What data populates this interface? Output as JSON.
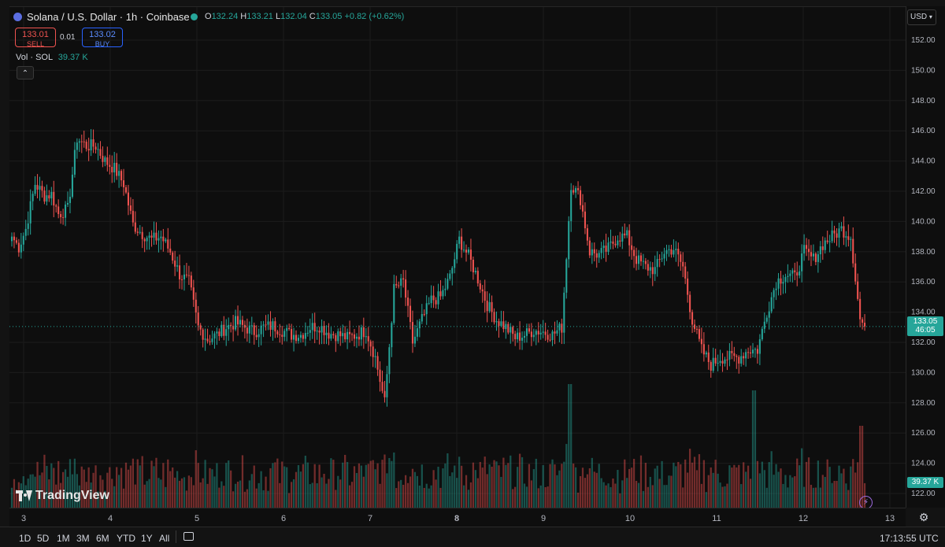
{
  "header": {
    "symbol_title": "Solana / U.S. Dollar · 1h · Coinbase",
    "ohlc": {
      "o_label": "O",
      "o_value": "132.24",
      "h_label": "H",
      "h_value": "133.21",
      "l_label": "L",
      "l_value": "132.04",
      "c_label": "C",
      "c_value": "133.05",
      "change": "+0.82 (+0.62%)"
    },
    "sell": {
      "price": "133.01",
      "label": "SELL"
    },
    "spread": "0.01",
    "buy": {
      "price": "133.02",
      "label": "BUY"
    },
    "volume_label": "Vol · SOL",
    "volume_value": "39.37 K",
    "collapse_icon": "chevron-up-icon"
  },
  "currency_select": "USD",
  "price_axis": {
    "ticks": [
      "152.00",
      "150.00",
      "148.00",
      "146.00",
      "144.00",
      "142.00",
      "140.00",
      "138.00",
      "136.00",
      "134.00",
      "132.00",
      "130.00",
      "128.00",
      "126.00",
      "124.00",
      "122.00"
    ],
    "last_price": "133.05",
    "countdown": "46:05",
    "volume_tag": "39.37 K"
  },
  "time_axis": {
    "labels": [
      "3",
      "4",
      "5",
      "6",
      "7",
      "8",
      "9",
      "10",
      "11",
      "12",
      "13"
    ]
  },
  "watermark": "TradingView",
  "bottom_bar": {
    "timeframes": [
      "1D",
      "5D",
      "1M",
      "3M",
      "6M",
      "YTD",
      "1Y",
      "All"
    ],
    "clock": "17:13:55 UTC"
  },
  "colors": {
    "up": "#26a69a",
    "down": "#ef5350",
    "background": "#0e0e0e",
    "last_price_tag": "#26a69a"
  },
  "chart_data": {
    "type": "candlestick",
    "ylim": [
      121,
      153
    ],
    "x_labels": [
      "3",
      "4",
      "5",
      "6",
      "7",
      "8",
      "9",
      "10",
      "11",
      "12",
      "13"
    ],
    "close_anchors": [
      [
        0,
        139.0
      ],
      [
        3,
        138.3
      ],
      [
        6,
        139.5
      ],
      [
        10,
        142.5
      ],
      [
        14,
        141.7
      ],
      [
        17,
        141.8
      ],
      [
        20,
        140.5
      ],
      [
        24,
        140.8
      ],
      [
        28,
        145.5
      ],
      [
        32,
        145.0
      ],
      [
        36,
        145.0
      ],
      [
        40,
        144.0
      ],
      [
        44,
        143.5
      ],
      [
        48,
        142.5
      ],
      [
        52,
        139.8
      ],
      [
        56,
        139.2
      ],
      [
        60,
        138.8
      ],
      [
        64,
        139.0
      ],
      [
        68,
        138.0
      ],
      [
        72,
        136.5
      ],
      [
        76,
        136.0
      ],
      [
        80,
        133.0
      ],
      [
        84,
        132.2
      ],
      [
        88,
        132.5
      ],
      [
        92,
        133.0
      ],
      [
        96,
        133.3
      ],
      [
        100,
        133.0
      ],
      [
        104,
        132.7
      ],
      [
        108,
        133.0
      ],
      [
        112,
        133.1
      ],
      [
        116,
        132.8
      ],
      [
        120,
        132.5
      ],
      [
        124,
        132.5
      ],
      [
        128,
        133.0
      ],
      [
        132,
        133.1
      ],
      [
        136,
        132.6
      ],
      [
        140,
        132.5
      ],
      [
        144,
        132.3
      ],
      [
        148,
        132.5
      ],
      [
        152,
        132.8
      ],
      [
        156,
        131.0
      ],
      [
        160,
        128.0
      ],
      [
        164,
        135.5
      ],
      [
        168,
        136.0
      ],
      [
        172,
        132.0
      ],
      [
        176,
        133.5
      ],
      [
        180,
        134.8
      ],
      [
        184,
        135.0
      ],
      [
        188,
        136.3
      ],
      [
        192,
        138.8
      ],
      [
        196,
        137.7
      ],
      [
        200,
        136.2
      ],
      [
        204,
        134.5
      ],
      [
        208,
        133.5
      ],
      [
        212,
        133.0
      ],
      [
        216,
        132.3
      ],
      [
        220,
        132.5
      ],
      [
        224,
        132.8
      ],
      [
        228,
        132.7
      ],
      [
        232,
        132.5
      ],
      [
        236,
        133.0
      ],
      [
        240,
        142.5
      ],
      [
        244,
        141.5
      ],
      [
        248,
        138.0
      ],
      [
        252,
        137.8
      ],
      [
        256,
        138.2
      ],
      [
        260,
        139.0
      ],
      [
        264,
        139.0
      ],
      [
        268,
        137.5
      ],
      [
        272,
        137.0
      ],
      [
        276,
        136.8
      ],
      [
        280,
        138.0
      ],
      [
        284,
        138.2
      ],
      [
        288,
        137.0
      ],
      [
        292,
        133.5
      ],
      [
        296,
        131.5
      ],
      [
        300,
        130.5
      ],
      [
        304,
        131.0
      ],
      [
        308,
        131.0
      ],
      [
        312,
        131.0
      ],
      [
        316,
        131.5
      ],
      [
        320,
        131.5
      ],
      [
        324,
        134.0
      ],
      [
        328,
        136.0
      ],
      [
        332,
        136.5
      ],
      [
        336,
        136.3
      ],
      [
        340,
        138.0
      ],
      [
        344,
        137.5
      ],
      [
        348,
        138.5
      ],
      [
        352,
        139.0
      ],
      [
        356,
        139.5
      ],
      [
        360,
        139.0
      ],
      [
        364,
        133.5
      ],
      [
        366,
        133.05
      ]
    ],
    "volume_range": [
      0,
      100
    ]
  }
}
